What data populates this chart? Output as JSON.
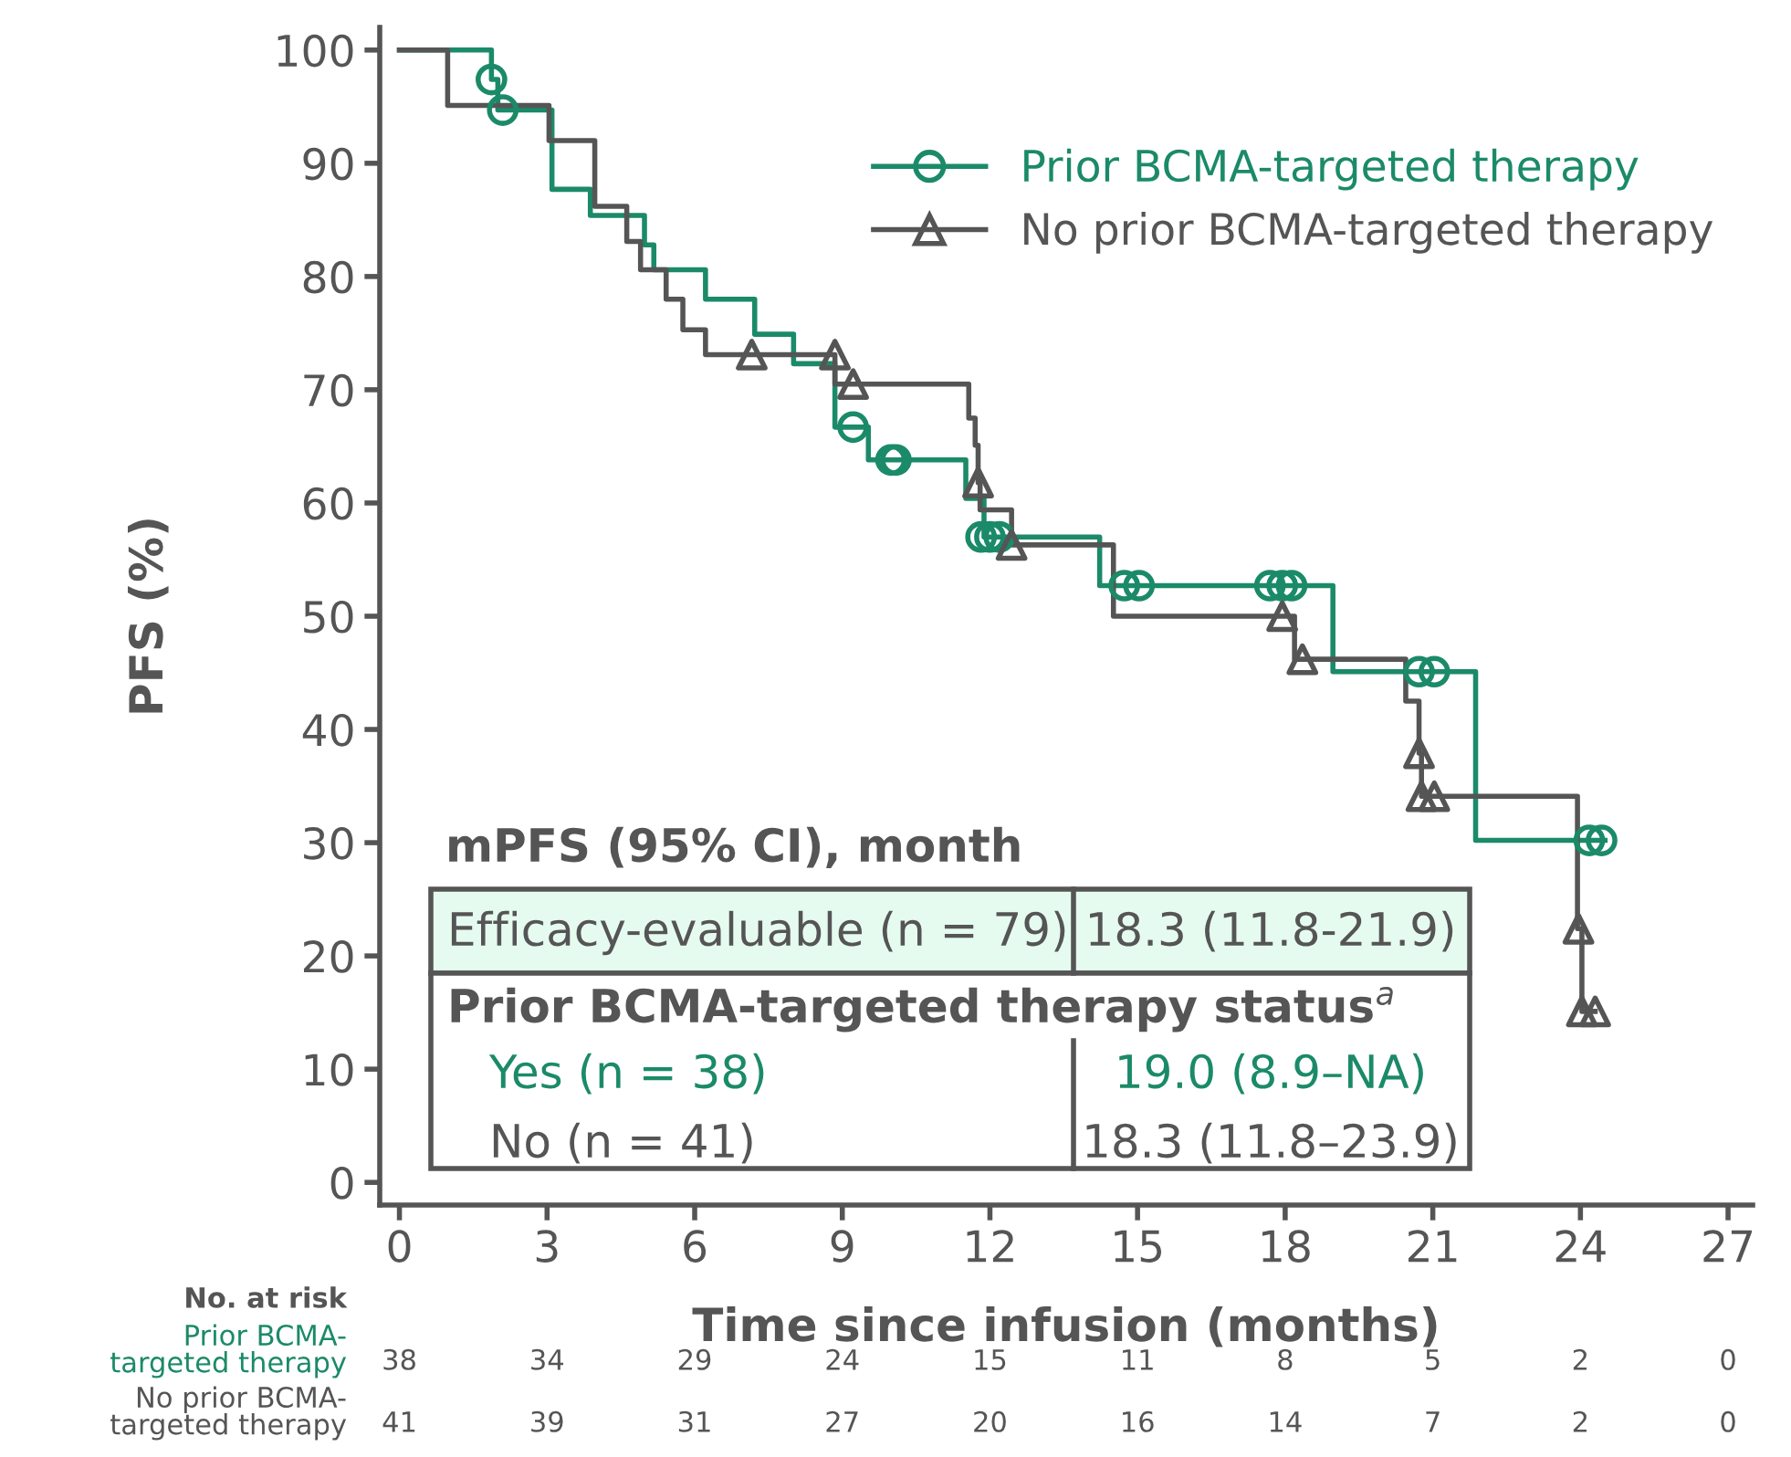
{
  "chart_data": {
    "type": "step",
    "ylabel": "PFS (%)",
    "xlabel": "Time since infusion (months)",
    "xlim": [
      -0.4,
      27.5
    ],
    "ylim": [
      -2,
      102
    ],
    "xticks": [
      0,
      3,
      6,
      9,
      12,
      15,
      18,
      21,
      24,
      27
    ],
    "yticks": [
      0,
      10,
      20,
      30,
      40,
      50,
      60,
      70,
      80,
      90,
      100
    ],
    "grid": false,
    "legend": "top right",
    "line_style": "solid",
    "series": [
      {
        "name": "Prior BCMA-targeted therapy",
        "color": "#1b8a68",
        "x": [
          0,
          1.87,
          2.0,
          3.1,
          3.88,
          4.98,
          5.17,
          6.22,
          7.22,
          8.01,
          8.85,
          9.53,
          11.51,
          11.88,
          14.23,
          18.97,
          21.87,
          24.5
        ],
        "values": [
          100,
          97.4,
          94.7,
          87.7,
          85.4,
          82.8,
          80.6,
          78.0,
          74.9,
          72.3,
          66.7,
          63.8,
          60.4,
          57.0,
          52.7,
          45.1,
          30.2,
          30.2
        ]
      },
      {
        "name": "No prior BCMA-targeted therapy",
        "color": "#555555",
        "x": [
          0,
          0.98,
          3.04,
          3.97,
          4.62,
          4.9,
          5.42,
          5.76,
          6.22,
          8.85,
          11.57,
          11.7,
          11.76,
          11.8,
          12.44,
          14.51,
          18.19,
          20.45,
          20.72,
          20.77,
          23.94,
          24.03,
          24.3
        ],
        "values": [
          100,
          95.1,
          92.0,
          86.2,
          83.1,
          80.6,
          78.0,
          75.3,
          73.1,
          70.5,
          67.5,
          65.1,
          61.8,
          59.4,
          56.3,
          50.0,
          46.2,
          42.5,
          37.9,
          34.1,
          22.4,
          15.1,
          15.1
        ]
      },
      {
        "type": "scatter",
        "color": "#1b8a68",
        "marker": "circle",
        "x": [
          1.87,
          2.1,
          9.22,
          9.99,
          10.09,
          11.82,
          12.0,
          12.19,
          14.73,
          15.03,
          17.69,
          17.94,
          18.13,
          20.72,
          21.03,
          24.18,
          24.43
        ],
        "values": [
          97.4,
          94.7,
          66.7,
          63.8,
          63.8,
          57.0,
          57.0,
          57.0,
          52.7,
          52.7,
          52.7,
          52.7,
          52.7,
          45.1,
          45.1,
          30.2,
          30.2
        ]
      },
      {
        "type": "scatter",
        "color": "#555555",
        "marker": "triangle",
        "x": [
          7.16,
          8.85,
          9.22,
          11.76,
          12.44,
          17.94,
          18.35,
          20.72,
          20.77,
          21.03,
          23.96,
          24.03,
          24.3
        ],
        "values": [
          73.1,
          73.1,
          70.5,
          61.8,
          56.3,
          50.0,
          46.2,
          37.9,
          34.1,
          34.1,
          22.4,
          15.1,
          15.1
        ]
      }
    ],
    "annotations": [
      "mPFS (95% CI), month",
      "Efficacy-evaluable (n = 79)",
      "18.3 (11.8-21.9)",
      "Prior BCMA-targeted therapy status$^{a}$",
      "Yes (n = 38)",
      "19.0 (8.9–NA)",
      "No (n = 41)",
      "18.3 (11.8–23.9)",
      "No. at risk",
      "Prior BCMA-\ntargeted therapy",
      "No prior BCMA-\ntargeted therapy",
      "38",
      "34",
      "29",
      "24",
      "15",
      "11",
      "8",
      "5",
      "2",
      "0",
      "41",
      "39",
      "31",
      "27",
      "20",
      "16",
      "14",
      "7",
      "2",
      "0"
    ]
  }
}
